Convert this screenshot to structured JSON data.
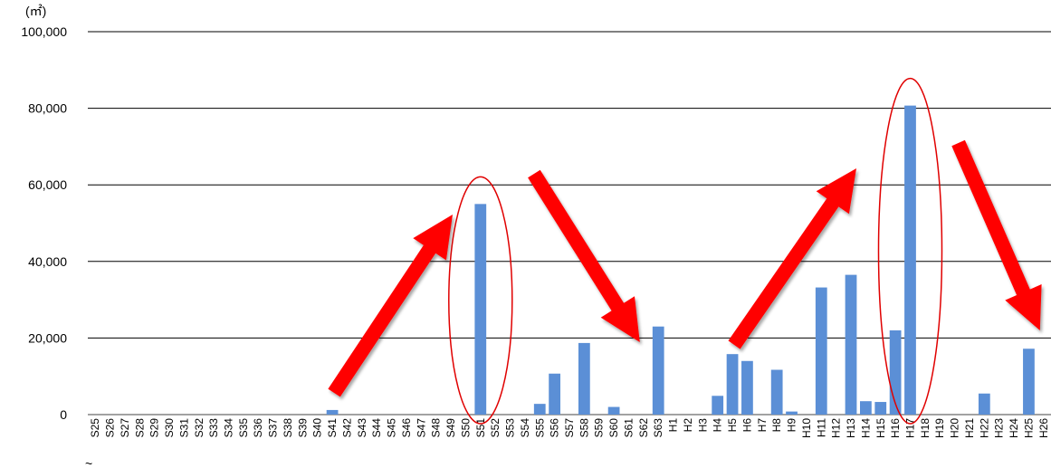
{
  "chart_data": {
    "type": "bar",
    "unit_label": "(㎡)",
    "first_label_prefix": "~",
    "ylim": [
      0,
      100000
    ],
    "yticks": [
      "0",
      "20,000",
      "40,000",
      "60,000",
      "80,000",
      "100,000"
    ],
    "grid": true,
    "bar_color": "#5b8fd6",
    "highlight_color": "#e00000",
    "categories": [
      "S25",
      "S26",
      "S27",
      "S28",
      "S29",
      "S30",
      "S31",
      "S32",
      "S33",
      "S34",
      "S35",
      "S36",
      "S37",
      "S38",
      "S39",
      "S40",
      "S41",
      "S42",
      "S43",
      "S44",
      "S45",
      "S46",
      "S47",
      "S48",
      "S49",
      "S50",
      "S51",
      "S52",
      "S53",
      "S54",
      "S55",
      "S56",
      "S57",
      "S58",
      "S59",
      "S60",
      "S61",
      "S62",
      "S63",
      "H1",
      "H2",
      "H3",
      "H4",
      "H5",
      "H6",
      "H7",
      "H8",
      "H9",
      "H10",
      "H11",
      "H12",
      "H13",
      "H14",
      "H15",
      "H16",
      "H17",
      "H18",
      "H19",
      "H20",
      "H21",
      "H22",
      "H23",
      "H24",
      "H25",
      "H26"
    ],
    "values": [
      0,
      0,
      0,
      0,
      0,
      0,
      0,
      0,
      0,
      0,
      0,
      0,
      0,
      0,
      0,
      0,
      1200,
      0,
      0,
      0,
      0,
      0,
      0,
      0,
      0,
      0,
      55000,
      0,
      0,
      0,
      2800,
      10700,
      0,
      18700,
      0,
      2000,
      0,
      0,
      23000,
      0,
      0,
      0,
      4900,
      15800,
      14000,
      0,
      11700,
      800,
      0,
      33200,
      0,
      36500,
      3500,
      3300,
      22000,
      80700,
      0,
      0,
      0,
      0,
      5500,
      0,
      0,
      17200,
      0
    ],
    "highlighted_categories": [
      "S51",
      "H17"
    ],
    "trend_arrows": [
      "up",
      "down",
      "up",
      "down"
    ]
  }
}
